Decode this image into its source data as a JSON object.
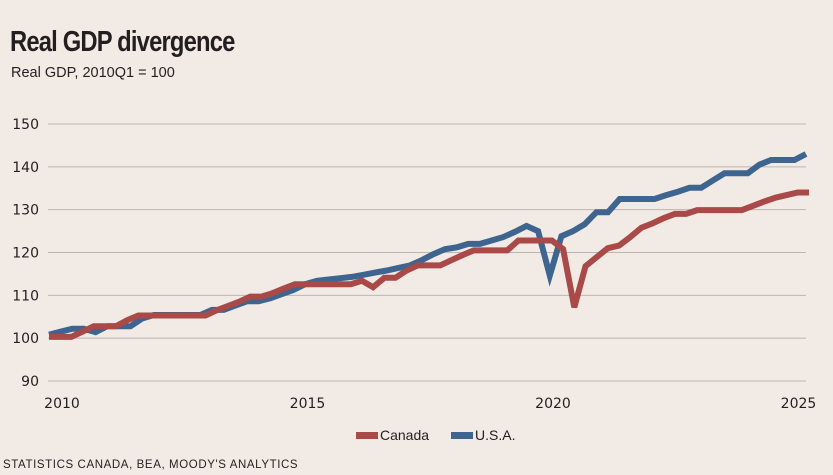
{
  "header": {
    "title": "Real GDP divergence",
    "subtitle": "Real GDP, 2010Q1 = 100"
  },
  "source": "STATISTICS CANADA, BEA, MOODY'S ANALYTICS",
  "colors": {
    "canada": "#a94a48",
    "usa": "#3d6590",
    "grid": "#bdb5b0",
    "background": "#f2eae4"
  },
  "chart_data": {
    "type": "line",
    "title": "Real GDP divergence",
    "subtitle": "Real GDP, 2010Q1 = 100",
    "xlabel": "",
    "ylabel": "",
    "x_start": 2010.0,
    "x_step_years": 0.25,
    "xlim": [
      2009.9,
      2025.35
    ],
    "ylim": [
      90,
      150
    ],
    "yticks": [
      "90",
      "100",
      "110",
      "120",
      "130",
      "140",
      "150"
    ],
    "xticks": [
      "2010",
      "2015",
      "2020",
      "2025"
    ],
    "grid": true,
    "legend_position": "bottom-center",
    "legend": [
      "Canada",
      "U.S.A."
    ],
    "series": [
      {
        "name": "Canada",
        "color": "#a94a48",
        "values": [
          100.3,
          100.3,
          100.3,
          101.5,
          102.8,
          102.8,
          102.8,
          104.2,
          105.3,
          105.3,
          105.3,
          105.3,
          105.3,
          105.3,
          105.3,
          106.5,
          107.5,
          108.5,
          109.7,
          109.7,
          110.5,
          111.6,
          112.6,
          112.6,
          112.6,
          112.6,
          112.6,
          112.6,
          113.4,
          111.9,
          114.1,
          114.1,
          115.8,
          117.0,
          117.0,
          117.0,
          118.2,
          119.4,
          120.5,
          120.5,
          120.5,
          120.5,
          122.8,
          122.8,
          122.8,
          122.8,
          120.8,
          107.2,
          116.8,
          118.9,
          121.0,
          121.6,
          123.6,
          125.8,
          126.8,
          128.0,
          129.0,
          129.0,
          129.9,
          129.9,
          129.9,
          129.9,
          129.9,
          130.9,
          131.9,
          132.8,
          133.4,
          134.0,
          134.0
        ],
        "values_note": "quarterly approx, 2010Q1 onward"
      },
      {
        "name": "U.S.A.",
        "color": "#3d6590",
        "values": [
          100.8,
          101.5,
          102.2,
          102.2,
          101.4,
          102.8,
          102.8,
          102.8,
          104.6,
          105.4,
          105.4,
          105.4,
          105.4,
          105.4,
          106.6,
          106.6,
          107.6,
          108.6,
          108.6,
          109.3,
          110.3,
          111.3,
          112.6,
          113.4,
          113.7,
          114.0,
          114.3,
          114.8,
          115.3,
          115.8,
          116.4,
          117.0,
          118.2,
          119.6,
          120.8,
          121.2,
          122.0,
          122.0,
          122.8,
          123.6,
          124.8,
          126.2,
          125.0,
          114.6,
          123.8,
          125.0,
          126.6,
          129.4,
          129.4,
          132.5,
          132.5,
          132.5,
          132.5,
          133.4,
          134.2,
          135.1,
          135.1,
          136.8,
          138.5,
          138.5,
          138.5,
          140.5,
          141.6,
          141.6,
          141.6,
          143.0
        ]
      }
    ]
  },
  "legend": [
    {
      "label": "Canada",
      "color": "#a94a48"
    },
    {
      "label": "U.S.A.",
      "color": "#3d6590"
    }
  ]
}
